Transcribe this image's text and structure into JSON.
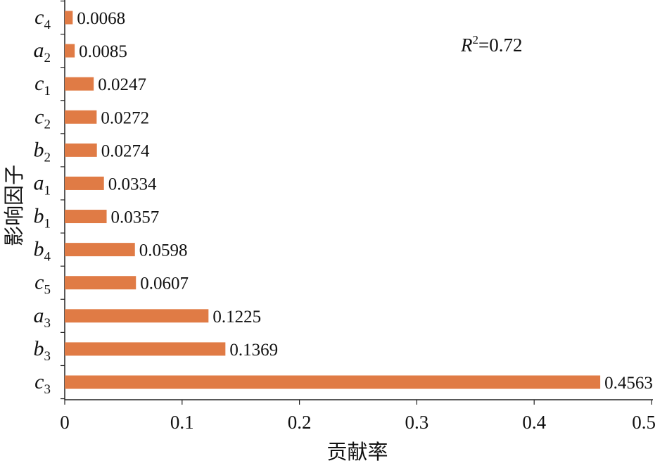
{
  "chart_data": {
    "type": "bar",
    "orientation": "horizontal",
    "categories": [
      {
        "letter": "c",
        "sub": "3"
      },
      {
        "letter": "b",
        "sub": "3"
      },
      {
        "letter": "a",
        "sub": "3"
      },
      {
        "letter": "c",
        "sub": "5"
      },
      {
        "letter": "b",
        "sub": "4"
      },
      {
        "letter": "b",
        "sub": "1"
      },
      {
        "letter": "a",
        "sub": "1"
      },
      {
        "letter": "b",
        "sub": "2"
      },
      {
        "letter": "c",
        "sub": "2"
      },
      {
        "letter": "c",
        "sub": "1"
      },
      {
        "letter": "a",
        "sub": "2"
      },
      {
        "letter": "c",
        "sub": "4"
      }
    ],
    "values": [
      0.4563,
      0.1369,
      0.1225,
      0.0607,
      0.0598,
      0.0357,
      0.0334,
      0.0274,
      0.0272,
      0.0247,
      0.0085,
      0.0068
    ],
    "value_labels": [
      "0.4563",
      "0.1369",
      "0.1225",
      "0.0607",
      "0.0598",
      "0.0357",
      "0.0334",
      "0.0274",
      "0.0272",
      "0.0247",
      "0.0085",
      "0.0068"
    ],
    "xticks": [
      "0",
      "0.1",
      "0.2",
      "0.3",
      "0.4",
      "0.5"
    ],
    "xlim": [
      0,
      0.5
    ],
    "xlabel": "贡献率",
    "ylabel": "影响因子",
    "annotation": {
      "var": "R",
      "sup": "2",
      "text": "=0.72"
    },
    "bar_color": "#E07B45",
    "grid": false
  }
}
